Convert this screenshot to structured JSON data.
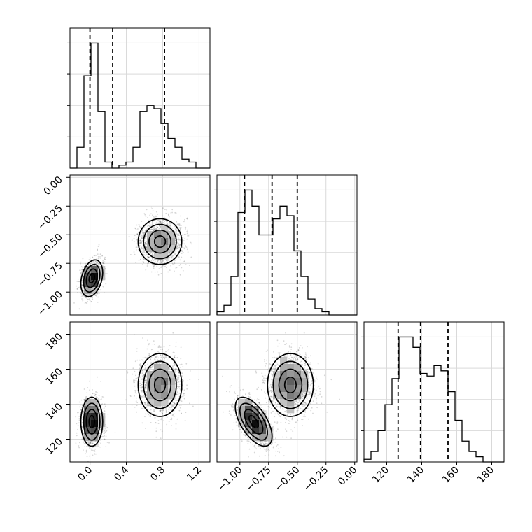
{
  "chart_data": {
    "type": "corner",
    "title": "",
    "variables": [
      {
        "index": 0,
        "label": "",
        "range": [
          -0.22,
          1.32
        ],
        "ticks": [
          0.0,
          0.4,
          0.8,
          1.2
        ],
        "tick_labels": [
          "0.0",
          "0.4",
          "0.8",
          "1.2"
        ],
        "quantiles": [
          0.0,
          0.25,
          0.82
        ]
      },
      {
        "index": 1,
        "label": "",
        "range": [
          -1.2,
          0.02
        ],
        "ticks": [
          -1.0,
          -0.75,
          -0.5,
          -0.25,
          0.0
        ],
        "tick_labels": [
          "−1.00",
          "−0.75",
          "−0.50",
          "−0.25",
          "0.00"
        ],
        "quantiles": [
          -0.96,
          -0.72,
          -0.5
        ]
      },
      {
        "index": 2,
        "label": "",
        "range": [
          107,
          187
        ],
        "ticks": [
          120,
          140,
          160,
          180
        ],
        "tick_labels": [
          "120",
          "140",
          "160",
          "180"
        ],
        "quantiles": [
          126.5,
          139.3,
          155.0
        ]
      }
    ],
    "histograms": [
      {
        "variable": 0,
        "bin_edges": [
          -0.22,
          -0.143,
          -0.066,
          0.011,
          0.088,
          0.165,
          0.242,
          0.319,
          0.396,
          0.473,
          0.55,
          0.627,
          0.704,
          0.781,
          0.858,
          0.935,
          1.012,
          1.089,
          1.166,
          1.243,
          1.32
        ],
        "counts": [
          0,
          7,
          31,
          42,
          19,
          2,
          0,
          1,
          2,
          7,
          19,
          21,
          20,
          15,
          10,
          7,
          3,
          2,
          0,
          0
        ]
      },
      {
        "variable": 1,
        "bin_edges": [
          -1.2,
          -1.139,
          -1.078,
          -1.017,
          -0.956,
          -0.895,
          -0.834,
          -0.773,
          -0.712,
          -0.651,
          -0.59,
          -0.529,
          -0.468,
          -0.407,
          -0.346,
          -0.285,
          -0.224,
          -0.163,
          -0.102,
          -0.041,
          0.02
        ],
        "counts": [
          1,
          3,
          12,
          32,
          39,
          34,
          25,
          25,
          30,
          34,
          31,
          20,
          12,
          5,
          2,
          1,
          0,
          0,
          0,
          0
        ]
      },
      {
        "variable": 2,
        "bin_edges": [
          107,
          111,
          115,
          119,
          123,
          127,
          131,
          135,
          139,
          143,
          147,
          151,
          155,
          159,
          163,
          167,
          171,
          175,
          179,
          183,
          187
        ],
        "counts": [
          1,
          4,
          12,
          22,
          32,
          48,
          48,
          44,
          34,
          33,
          37,
          35,
          27,
          16,
          8,
          4,
          2,
          0,
          0,
          0
        ]
      }
    ],
    "components": [
      {
        "name": "",
        "weight": 0.45,
        "mean": [
          0.02,
          -0.88,
          130
        ],
        "sd": [
          0.06,
          0.08,
          7
        ],
        "corr": [
          [
            1.0,
            0.3,
            0.0
          ],
          [
            0.3,
            1.0,
            -0.6
          ],
          [
            0.0,
            -0.6,
            1.0
          ]
        ]
      },
      {
        "name": "",
        "weight": 0.55,
        "mean": [
          0.77,
          -0.56,
          151
        ],
        "sd": [
          0.12,
          0.1,
          9
        ],
        "corr": [
          [
            1.0,
            0.0,
            0.0
          ],
          [
            0.0,
            1.0,
            0.0
          ],
          [
            0.0,
            0.0,
            1.0
          ]
        ]
      }
    ],
    "contour_levels_sigma": [
      0.5,
      1.0,
      1.5,
      2.0
    ],
    "grid": true,
    "legend": "none"
  }
}
